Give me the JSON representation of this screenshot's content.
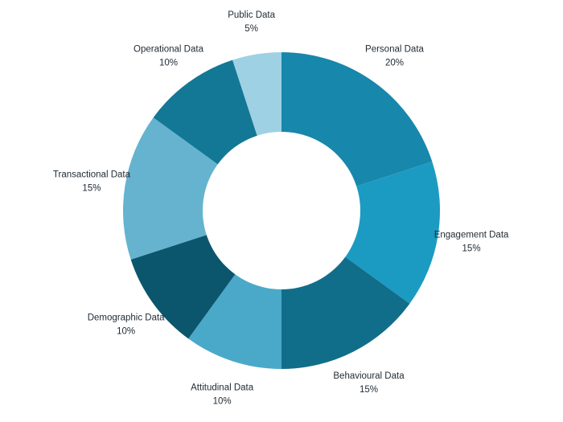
{
  "chart_data": {
    "type": "pie",
    "donut": true,
    "title": "",
    "slices": [
      {
        "label": "Personal Data",
        "value": 20,
        "display": "20%",
        "color": "#1787ab"
      },
      {
        "label": "Engagement Data",
        "value": 15,
        "display": "15%",
        "color": "#1c9bc2"
      },
      {
        "label": "Behavioural Data",
        "value": 15,
        "display": "15%",
        "color": "#116e8a"
      },
      {
        "label": "Attitudinal Data",
        "value": 10,
        "display": "10%",
        "color": "#4aa9c8"
      },
      {
        "label": "Demographic Data",
        "value": 10,
        "display": "10%",
        "color": "#0c566d"
      },
      {
        "label": "Transactional Data",
        "value": 15,
        "display": "15%",
        "color": "#65b3cf"
      },
      {
        "label": "Operational Data",
        "value": 10,
        "display": "10%",
        "color": "#137895"
      },
      {
        "label": "Public Data",
        "value": 5,
        "display": "5%",
        "color": "#9ed1e3"
      }
    ]
  }
}
